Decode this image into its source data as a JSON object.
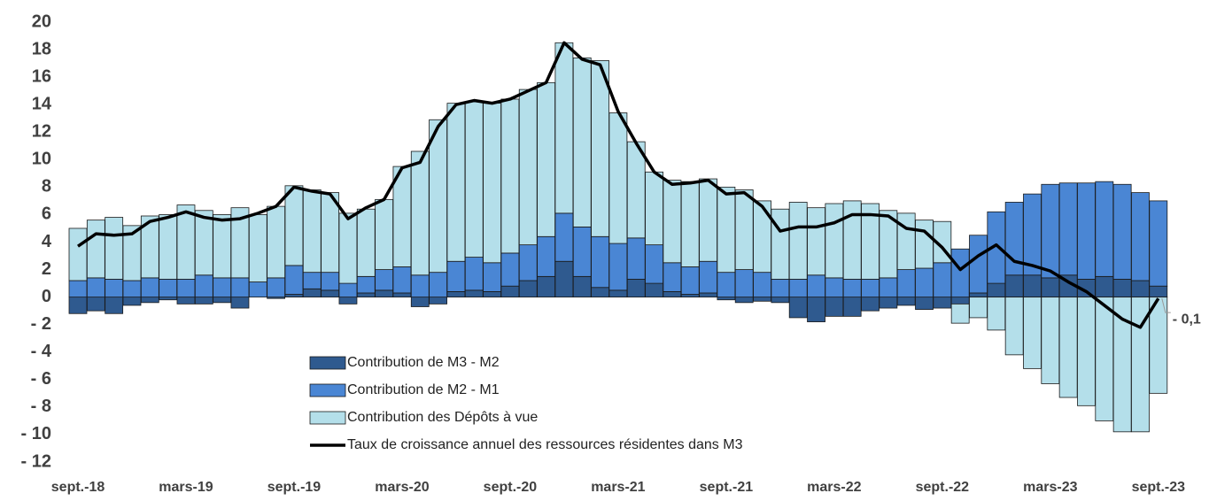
{
  "chart_data": {
    "type": "bar",
    "categories": [
      "sept.-18",
      null,
      null,
      null,
      null,
      null,
      "mars-19",
      null,
      null,
      null,
      null,
      null,
      "sept.-19",
      null,
      null,
      null,
      null,
      null,
      "mars-20",
      null,
      null,
      null,
      null,
      null,
      "sept.-20",
      null,
      null,
      null,
      null,
      null,
      "mars-21",
      null,
      null,
      null,
      null,
      null,
      "sept.-21",
      null,
      null,
      null,
      null,
      null,
      "mars-22",
      null,
      null,
      null,
      null,
      null,
      "sept.-22",
      null,
      null,
      null,
      null,
      null,
      "mars-23",
      null,
      null,
      null,
      null,
      null,
      "sept.-23"
    ],
    "ylim": [
      -12,
      20
    ],
    "yticks": [
      {
        "value": -12,
        "label": "- 12"
      },
      {
        "value": -10,
        "label": "- 10"
      },
      {
        "value": -8,
        "label": "- 8"
      },
      {
        "value": -6,
        "label": "- 6"
      },
      {
        "value": -4,
        "label": "- 4"
      },
      {
        "value": -2,
        "label": "- 2"
      },
      0,
      2,
      4,
      6,
      8,
      10,
      12,
      14,
      16,
      18,
      20
    ],
    "series": [
      {
        "name": "Contribution de M3 - M2",
        "type": "bar",
        "color": "#2f5a8f",
        "values": [
          -1.2,
          -1.0,
          -1.2,
          -0.6,
          -0.4,
          -0.2,
          -0.5,
          -0.5,
          -0.4,
          -0.8,
          0.0,
          -0.1,
          0.2,
          0.6,
          0.5,
          -0.5,
          0.3,
          0.5,
          0.3,
          -0.7,
          -0.5,
          0.4,
          0.5,
          0.4,
          0.8,
          1.2,
          1.5,
          2.6,
          1.5,
          0.7,
          0.5,
          1.3,
          1.0,
          0.4,
          0.2,
          0.3,
          -0.2,
          -0.4,
          -0.3,
          -0.4,
          -1.5,
          -1.8,
          -1.4,
          -1.4,
          -1.0,
          -0.8,
          -0.6,
          -0.9,
          -0.8,
          -0.5,
          0.3,
          1.0,
          1.6,
          1.6,
          1.4,
          1.6,
          1.3,
          1.5,
          1.3,
          1.2,
          0.8
        ]
      },
      {
        "name": "Contribution de M2 - M1",
        "type": "bar",
        "color": "#4a86d4",
        "values": [
          1.2,
          1.4,
          1.3,
          1.2,
          1.4,
          1.3,
          1.3,
          1.6,
          1.4,
          1.4,
          1.1,
          1.4,
          2.1,
          1.2,
          1.3,
          1.0,
          1.2,
          1.5,
          1.9,
          1.6,
          1.8,
          2.2,
          2.4,
          2.1,
          2.4,
          2.6,
          2.9,
          3.5,
          3.6,
          3.7,
          3.4,
          3.0,
          2.8,
          2.1,
          2.0,
          2.3,
          1.8,
          2.0,
          1.8,
          1.3,
          1.3,
          1.6,
          1.4,
          1.3,
          1.3,
          1.4,
          2.0,
          2.1,
          2.5,
          3.5,
          4.2,
          5.2,
          5.3,
          5.9,
          6.8,
          6.7,
          7.0,
          6.9,
          6.9,
          6.4,
          6.2
        ]
      },
      {
        "name": "Contribution des Dépôts à vue",
        "type": "bar",
        "color": "#b4dfea",
        "values": [
          3.8,
          4.2,
          4.5,
          4.0,
          4.5,
          4.7,
          5.4,
          4.7,
          4.6,
          5.1,
          4.9,
          5.2,
          5.8,
          6.0,
          5.8,
          5.1,
          4.9,
          5.1,
          7.3,
          9.0,
          11.1,
          11.5,
          11.3,
          11.6,
          11.2,
          11.3,
          11.2,
          12.4,
          12.3,
          12.8,
          9.5,
          7.0,
          5.3,
          6.0,
          6.2,
          6.0,
          6.2,
          5.8,
          5.2,
          5.1,
          5.6,
          4.9,
          5.4,
          5.7,
          5.5,
          4.9,
          4.1,
          3.5,
          3.0,
          -1.4,
          -1.5,
          -2.4,
          -4.2,
          -5.2,
          -6.3,
          -7.3,
          -7.9,
          -9.0,
          -9.8,
          -9.8,
          -7.0
        ]
      },
      {
        "name": "Taux de croissance annuel des ressources résidentes dans M3",
        "type": "line",
        "color": "#000000",
        "values": [
          3.7,
          4.6,
          4.5,
          4.6,
          5.5,
          5.8,
          6.2,
          5.8,
          5.6,
          5.7,
          6.1,
          6.6,
          8.0,
          7.7,
          7.5,
          5.7,
          6.5,
          7.1,
          9.4,
          9.8,
          12.4,
          14.0,
          14.3,
          14.1,
          14.4,
          15.0,
          15.6,
          18.5,
          17.3,
          16.9,
          13.5,
          11.2,
          9.1,
          8.2,
          8.3,
          8.5,
          7.5,
          7.6,
          6.6,
          4.8,
          5.1,
          5.1,
          5.4,
          6.0,
          6.0,
          5.9,
          5.0,
          4.8,
          3.6,
          2.0,
          3.0,
          3.8,
          2.6,
          2.3,
          1.9,
          1.1,
          0.4,
          -0.6,
          -1.6,
          -2.2,
          -0.1
        ],
        "value_labels": [
          null,
          null,
          null,
          null,
          null,
          null,
          null,
          null,
          null,
          null,
          null,
          null,
          null,
          null,
          null,
          null,
          null,
          null,
          null,
          null,
          null,
          null,
          null,
          null,
          null,
          null,
          null,
          null,
          null,
          null,
          null,
          null,
          null,
          null,
          null,
          null,
          null,
          null,
          null,
          null,
          null,
          null,
          null,
          null,
          null,
          null,
          null,
          null,
          null,
          null,
          null,
          null,
          null,
          null,
          null,
          null,
          null,
          null,
          null,
          null,
          "- 0,1"
        ]
      }
    ]
  }
}
